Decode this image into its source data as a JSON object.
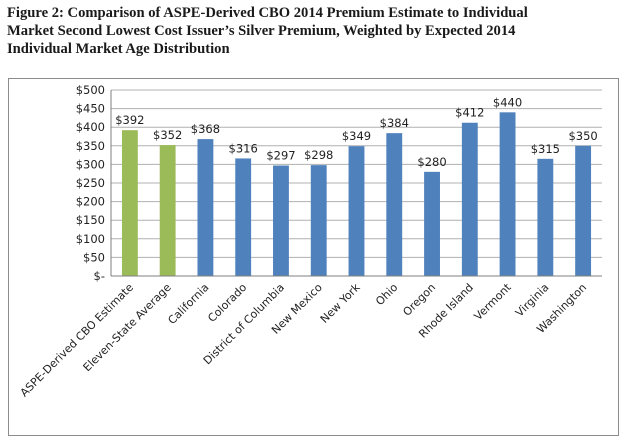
{
  "figure": {
    "title_line1": "Figure 2: Comparison of ASPE-Derived CBO 2014 Premium Estimate to Individual",
    "title_line2": "Market Second Lowest Cost Issuer’s Silver Premium, Weighted by Expected 2014",
    "title_line3": "Individual Market Age Distribution"
  },
  "chart_data": {
    "type": "bar",
    "categories": [
      "ASPE-Derived CBO Estimate",
      "Eleven-State Average",
      "California",
      "Colorado",
      "District of Columbia",
      "New Mexico",
      "New York",
      "Ohio",
      "Oregon",
      "Rhode Island",
      "Vermont",
      "Virginia",
      "Washington"
    ],
    "values": [
      392,
      352,
      368,
      316,
      297,
      298,
      349,
      384,
      280,
      412,
      440,
      315,
      350
    ],
    "data_labels": [
      "$392",
      "$352",
      "$368",
      "$316",
      "$297",
      "$298",
      "$349",
      "$384",
      "$280",
      "$412",
      "$440",
      "$315",
      "$350"
    ],
    "bar_colors": [
      "#9bbb59",
      "#9bbb59",
      "#4f81bd",
      "#4f81bd",
      "#4f81bd",
      "#4f81bd",
      "#4f81bd",
      "#4f81bd",
      "#4f81bd",
      "#4f81bd",
      "#4f81bd",
      "#4f81bd",
      "#4f81bd"
    ],
    "ylim": [
      0,
      500
    ],
    "yticks": [
      0,
      50,
      100,
      150,
      200,
      250,
      300,
      350,
      400,
      450,
      500
    ],
    "ytick_labels": [
      "$-",
      "$50",
      "$100",
      "$150",
      "$200",
      "$250",
      "$300",
      "$350",
      "$400",
      "$450",
      "$500"
    ],
    "grid": true,
    "grid_color": "#b0b0b0",
    "legend": false,
    "title": "",
    "xlabel": "",
    "ylabel": ""
  }
}
